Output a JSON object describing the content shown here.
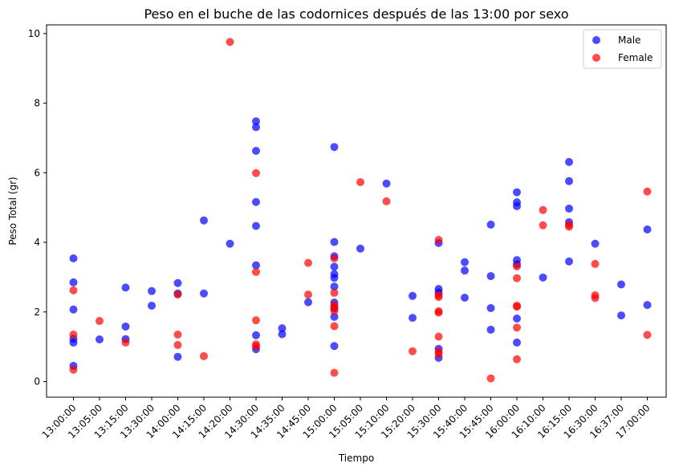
{
  "chart_data": {
    "type": "scatter",
    "title": "Peso en el buche de las codornices después de las 13:00 por sexo",
    "xlabel": "Tiempo",
    "ylabel": "Peso Total (gr)",
    "categories": [
      "13:00:00",
      "13:05:00",
      "13:15:00",
      "13:30:00",
      "14:00:00",
      "14:15:00",
      "14:20:00",
      "14:30:00",
      "14:35:00",
      "14:45:00",
      "15:00:00",
      "15:05:00",
      "15:10:00",
      "15:20:00",
      "15:30:00",
      "15:40:00",
      "15:45:00",
      "16:00:00",
      "16:10:00",
      "16:15:00",
      "16:30:00",
      "16:37:00",
      "17:00:00"
    ],
    "yticks": [
      0,
      2,
      4,
      6,
      8,
      10
    ],
    "ylim": [
      -0.45,
      10.25
    ],
    "grid": false,
    "legend_position": "top-right",
    "series": [
      {
        "name": "Male",
        "color": "#0000ff",
        "points": [
          [
            "13:00:00",
            3.54
          ],
          [
            "13:00:00",
            2.85
          ],
          [
            "13:00:00",
            2.07
          ],
          [
            "13:00:00",
            1.23
          ],
          [
            "13:00:00",
            1.12
          ],
          [
            "13:00:00",
            0.45
          ],
          [
            "13:05:00",
            1.21
          ],
          [
            "13:15:00",
            2.7
          ],
          [
            "13:15:00",
            1.58
          ],
          [
            "13:15:00",
            1.22
          ],
          [
            "13:30:00",
            2.6
          ],
          [
            "13:30:00",
            2.18
          ],
          [
            "14:00:00",
            2.83
          ],
          [
            "14:00:00",
            2.53
          ],
          [
            "14:00:00",
            0.71
          ],
          [
            "14:15:00",
            4.63
          ],
          [
            "14:15:00",
            2.53
          ],
          [
            "14:20:00",
            3.96
          ],
          [
            "14:30:00",
            7.48
          ],
          [
            "14:30:00",
            7.31
          ],
          [
            "14:30:00",
            6.63
          ],
          [
            "14:30:00",
            5.16
          ],
          [
            "14:30:00",
            4.47
          ],
          [
            "14:30:00",
            3.34
          ],
          [
            "14:30:00",
            1.33
          ],
          [
            "14:30:00",
            0.93
          ],
          [
            "14:35:00",
            1.53
          ],
          [
            "14:35:00",
            1.36
          ],
          [
            "14:45:00",
            2.28
          ],
          [
            "15:00:00",
            6.74
          ],
          [
            "15:00:00",
            4.01
          ],
          [
            "15:00:00",
            3.6
          ],
          [
            "15:00:00",
            3.3
          ],
          [
            "15:00:00",
            3.09
          ],
          [
            "15:00:00",
            2.98
          ],
          [
            "15:00:00",
            2.73
          ],
          [
            "15:00:00",
            2.27
          ],
          [
            "15:00:00",
            2.1
          ],
          [
            "15:00:00",
            1.86
          ],
          [
            "15:00:00",
            1.02
          ],
          [
            "15:05:00",
            3.82
          ],
          [
            "15:10:00",
            5.69
          ],
          [
            "15:20:00",
            2.46
          ],
          [
            "15:20:00",
            1.83
          ],
          [
            "15:30:00",
            3.98
          ],
          [
            "15:30:00",
            2.66
          ],
          [
            "15:30:00",
            2.56
          ],
          [
            "15:30:00",
            0.94
          ],
          [
            "15:30:00",
            0.68
          ],
          [
            "15:40:00",
            3.43
          ],
          [
            "15:40:00",
            3.19
          ],
          [
            "15:40:00",
            2.41
          ],
          [
            "15:45:00",
            4.51
          ],
          [
            "15:45:00",
            3.03
          ],
          [
            "15:45:00",
            2.11
          ],
          [
            "15:45:00",
            1.49
          ],
          [
            "16:00:00",
            5.44
          ],
          [
            "16:00:00",
            5.15
          ],
          [
            "16:00:00",
            5.04
          ],
          [
            "16:00:00",
            3.49
          ],
          [
            "16:00:00",
            3.37
          ],
          [
            "16:00:00",
            1.81
          ],
          [
            "16:00:00",
            1.12
          ],
          [
            "16:10:00",
            2.99
          ],
          [
            "16:15:00",
            6.31
          ],
          [
            "16:15:00",
            5.76
          ],
          [
            "16:15:00",
            4.97
          ],
          [
            "16:15:00",
            4.58
          ],
          [
            "16:15:00",
            3.45
          ],
          [
            "16:30:00",
            3.96
          ],
          [
            "16:37:00",
            2.79
          ],
          [
            "16:37:00",
            1.9
          ],
          [
            "17:00:00",
            4.37
          ],
          [
            "17:00:00",
            2.2
          ]
        ]
      },
      {
        "name": "Female",
        "color": "#ff0000",
        "points": [
          [
            "13:00:00",
            2.62
          ],
          [
            "13:00:00",
            1.35
          ],
          [
            "13:00:00",
            0.34
          ],
          [
            "13:05:00",
            1.74
          ],
          [
            "13:15:00",
            1.12
          ],
          [
            "14:00:00",
            2.5
          ],
          [
            "14:00:00",
            1.35
          ],
          [
            "14:00:00",
            1.05
          ],
          [
            "14:15:00",
            0.73
          ],
          [
            "14:20:00",
            9.76
          ],
          [
            "14:30:00",
            5.99
          ],
          [
            "14:30:00",
            3.15
          ],
          [
            "14:30:00",
            1.76
          ],
          [
            "14:30:00",
            1.07
          ],
          [
            "14:30:00",
            1.01
          ],
          [
            "14:45:00",
            3.41
          ],
          [
            "14:45:00",
            2.5
          ],
          [
            "15:00:00",
            3.54
          ],
          [
            "15:00:00",
            2.55
          ],
          [
            "15:00:00",
            2.2
          ],
          [
            "15:00:00",
            2.13
          ],
          [
            "15:00:00",
            2.03
          ],
          [
            "15:00:00",
            1.59
          ],
          [
            "15:00:00",
            0.25
          ],
          [
            "15:05:00",
            5.73
          ],
          [
            "15:10:00",
            5.18
          ],
          [
            "15:20:00",
            0.87
          ],
          [
            "15:30:00",
            4.07
          ],
          [
            "15:30:00",
            2.48
          ],
          [
            "15:30:00",
            2.43
          ],
          [
            "15:30:00",
            2.02
          ],
          [
            "15:30:00",
            1.98
          ],
          [
            "15:30:00",
            1.29
          ],
          [
            "15:30:00",
            0.86
          ],
          [
            "15:30:00",
            0.79
          ],
          [
            "15:45:00",
            0.09
          ],
          [
            "16:00:00",
            3.31
          ],
          [
            "16:00:00",
            2.97
          ],
          [
            "16:00:00",
            2.18
          ],
          [
            "16:00:00",
            2.15
          ],
          [
            "16:00:00",
            1.55
          ],
          [
            "16:00:00",
            0.64
          ],
          [
            "16:10:00",
            4.93
          ],
          [
            "16:10:00",
            4.49
          ],
          [
            "16:15:00",
            4.5
          ],
          [
            "16:15:00",
            4.45
          ],
          [
            "16:30:00",
            3.38
          ],
          [
            "16:30:00",
            2.48
          ],
          [
            "16:30:00",
            2.4
          ],
          [
            "17:00:00",
            5.46
          ],
          [
            "17:00:00",
            1.34
          ]
        ]
      }
    ]
  }
}
